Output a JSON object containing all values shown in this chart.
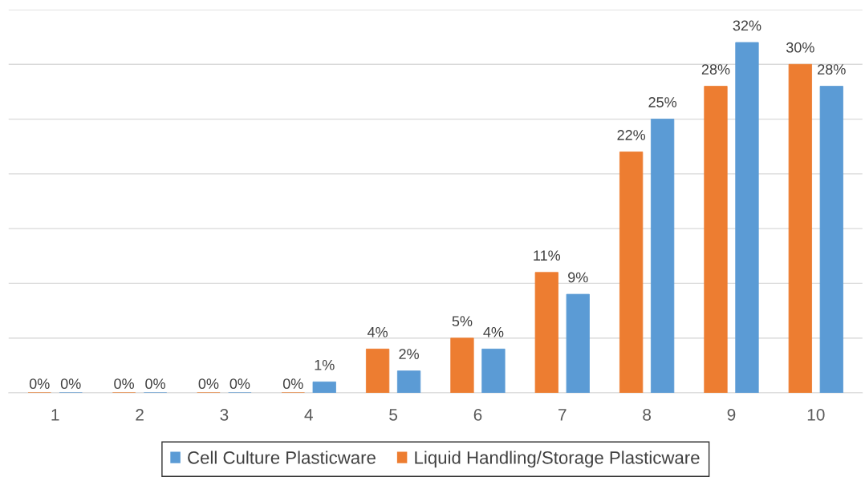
{
  "chart_data": {
    "type": "bar",
    "categories": [
      "1",
      "2",
      "3",
      "4",
      "5",
      "6",
      "7",
      "8",
      "9",
      "10"
    ],
    "series": [
      {
        "name": "Cell Culture Plasticware",
        "color": "#5b9bd5",
        "values": [
          0,
          0,
          0,
          1,
          2,
          4,
          9,
          25,
          32,
          28
        ],
        "value_labels": [
          "0%",
          "0%",
          "0%",
          "1%",
          "2%",
          "4%",
          "9%",
          "25%",
          "32%",
          "28%"
        ]
      },
      {
        "name": "Liquid Handling/Storage Plasticware",
        "color": "#ed7d31",
        "values": [
          0,
          0,
          0,
          0,
          4,
          5,
          11,
          22,
          28,
          30
        ],
        "value_labels": [
          "0%",
          "0%",
          "0%",
          "0%",
          "4%",
          "5%",
          "11%",
          "22%",
          "28%",
          "30%"
        ]
      }
    ],
    "tick_labels": "x",
    "grid": "y",
    "legend": "bottom"
  }
}
